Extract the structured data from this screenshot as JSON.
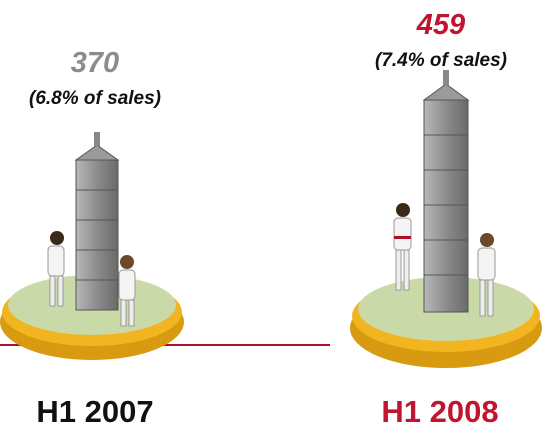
{
  "items": [
    {
      "value": "370",
      "note": "(6.8% of sales)",
      "label": "H1 2007"
    },
    {
      "value": "459",
      "note": "(7.4% of sales)",
      "label": "H1 2008"
    }
  ]
}
